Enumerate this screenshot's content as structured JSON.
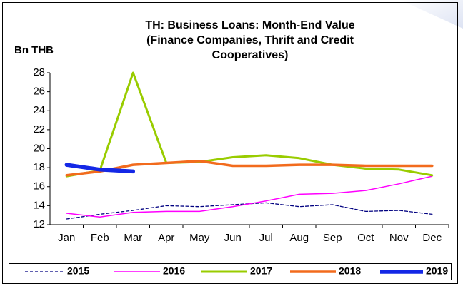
{
  "chart_data": {
    "type": "line",
    "title": [
      "TH: Business Loans: Month-End Value",
      "(Finance Companies, Thrift and Credit",
      "Cooperatives)"
    ],
    "y_label": "Bn THB",
    "categories": [
      "Jan",
      "Feb",
      "Mar",
      "Apr",
      "May",
      "Jun",
      "Jul",
      "Aug",
      "Sep",
      "Oct",
      "Nov",
      "Dec"
    ],
    "series": [
      {
        "name": "2015",
        "color": "#000080",
        "values": [
          12.6,
          13.1,
          13.5,
          14.0,
          13.9,
          14.1,
          14.3,
          13.9,
          14.1,
          13.4,
          13.5,
          13.1
        ]
      },
      {
        "name": "2016",
        "color": "#ff00ff",
        "values": [
          13.2,
          12.8,
          13.3,
          13.4,
          13.4,
          13.9,
          14.5,
          15.2,
          15.3,
          15.6,
          16.3,
          17.1
        ]
      },
      {
        "name": "2017",
        "color": "#99cc00",
        "values": [
          17.1,
          17.7,
          28.0,
          18.5,
          18.6,
          19.1,
          19.3,
          19.0,
          18.3,
          17.9,
          17.8,
          17.2
        ]
      },
      {
        "name": "2018",
        "color": "#f26b1d",
        "values": [
          17.2,
          17.6,
          18.3,
          18.5,
          18.7,
          18.2,
          18.2,
          18.3,
          18.3,
          18.2,
          18.2,
          18.2
        ]
      },
      {
        "name": "2019",
        "color": "#1428e6",
        "values": [
          18.3,
          17.8,
          17.6,
          null,
          null,
          null,
          null,
          null,
          null,
          null,
          null,
          null
        ]
      }
    ],
    "ylim": [
      12,
      28
    ],
    "yticks": [
      12,
      14,
      16,
      18,
      20,
      22,
      24,
      26,
      28
    ],
    "grid": false,
    "legend": "bottom"
  }
}
